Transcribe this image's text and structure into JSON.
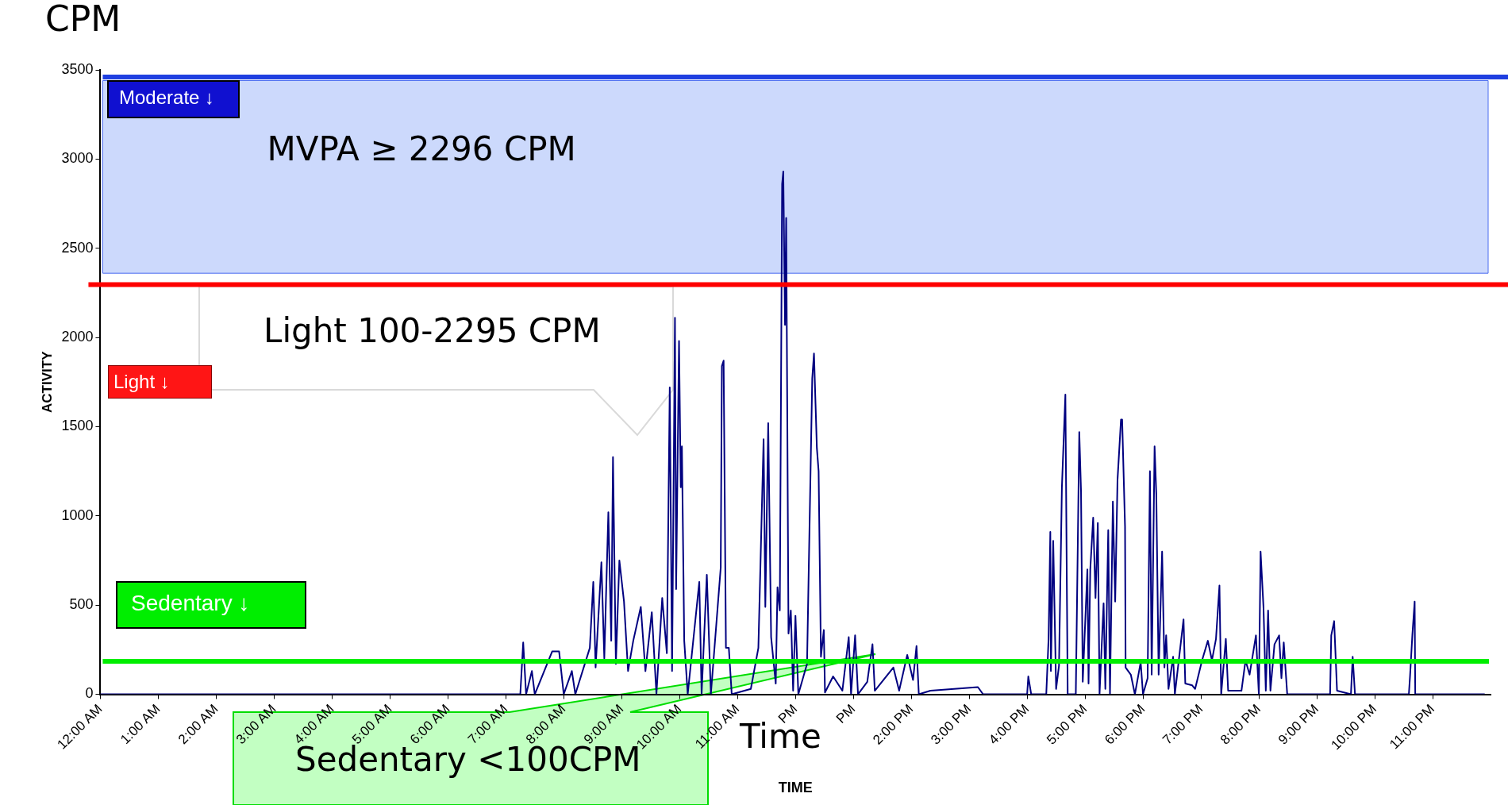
{
  "chart_data": {
    "type": "line",
    "title": "CPM",
    "xlabel": "TIME",
    "ylabel": "ACTIVITY",
    "annotations": [
      "Light 100-2295 CPM",
      "Sedentary <100CPM",
      "Time",
      "Light ↓",
      "Sedentary ↓"
    ],
    "xlim": [
      0,
      24
    ],
    "ylim": [
      0,
      3500
    ],
    "xticks": [
      {
        "value": 0,
        "label": "12:00 AM"
      },
      {
        "value": 1,
        "label": "1:00 AM"
      },
      {
        "value": 2,
        "label": "2:00 AM"
      },
      {
        "value": 3,
        "label": "3:00 AM"
      },
      {
        "value": 4,
        "label": "4:00 AM"
      },
      {
        "value": 5,
        "label": "5:00 AM"
      },
      {
        "value": 6,
        "label": "6:00 AM"
      },
      {
        "value": 7,
        "label": "7:00 AM"
      },
      {
        "value": 8,
        "label": "8:00 AM"
      },
      {
        "value": 9,
        "label": "9:00 AM"
      },
      {
        "value": 10,
        "label": "10:00 AM"
      },
      {
        "value": 11,
        "label": "11:00 AM"
      },
      {
        "value": 12,
        "label": "PM"
      },
      {
        "value": 13,
        "label": "PM"
      },
      {
        "value": 14,
        "label": "2:00 PM"
      },
      {
        "value": 15,
        "label": "3:00 PM"
      },
      {
        "value": 16,
        "label": "4:00 PM"
      },
      {
        "value": 17,
        "label": "5:00 PM"
      },
      {
        "value": 18,
        "label": "6:00 PM"
      },
      {
        "value": 19,
        "label": "7:00 PM"
      },
      {
        "value": 20,
        "label": "8:00 PM"
      },
      {
        "value": 21,
        "label": "9:00 PM"
      },
      {
        "value": 22,
        "label": "10:00 PM"
      },
      {
        "value": 23,
        "label": "11:00 PM"
      }
    ],
    "yticks": [
      0,
      500,
      1000,
      1500,
      2000,
      2500,
      3000,
      3500
    ],
    "grid": false,
    "legend": false,
    "marker": "none",
    "line_style": "solid",
    "bands": [
      {
        "axis": "y",
        "from": 2360,
        "to": 3440,
        "label": "MVPA ≥ 2296 CPM",
        "color": "#ccd9fc"
      }
    ],
    "ref_lines": [
      {
        "axis": "y",
        "value": 3460,
        "label": "Moderate ↓",
        "color": "#1f3fe0"
      },
      {
        "axis": "y",
        "value": 2296,
        "color": "#ff0000"
      },
      {
        "axis": "y",
        "value": 185,
        "color": "#00ee00"
      }
    ],
    "series": [
      {
        "color": "#000080",
        "x": [
          0,
          7.25,
          7.3,
          7.35,
          7.45,
          7.5,
          7.8,
          7.92,
          8.0,
          8.14,
          8.2,
          8.45,
          8.51,
          8.55,
          8.65,
          8.7,
          8.77,
          8.82,
          8.85,
          8.9,
          8.96,
          9.04,
          9.11,
          9.2,
          9.33,
          9.41,
          9.52,
          9.6,
          9.7,
          9.78,
          9.83,
          9.87,
          9.92,
          9.94,
          9.99,
          10.02,
          10.04,
          10.08,
          10.14,
          10.34,
          10.38,
          10.47,
          10.54,
          10.71,
          10.73,
          10.76,
          10.8,
          10.85,
          10.9,
          11.23,
          11.36,
          11.45,
          11.48,
          11.53,
          11.58,
          11.66,
          11.69,
          11.73,
          11.77,
          11.79,
          11.82,
          11.84,
          11.88,
          11.92,
          11.96,
          12.0,
          12.05,
          12.2,
          12.29,
          12.32,
          12.37,
          12.4,
          12.44,
          12.49,
          12.51,
          12.65,
          12.81,
          12.92,
          12.96,
          13.03,
          13.08,
          13.24,
          13.33,
          13.37,
          13.69,
          13.79,
          13.93,
          14.03,
          14.09,
          14.13,
          14.33,
          15.15,
          15.24,
          16.0,
          16.02,
          16.07,
          16.33,
          16.37,
          16.4,
          16.41,
          16.45,
          16.5,
          16.55,
          16.6,
          16.66,
          16.7,
          16.84,
          16.9,
          16.93,
          16.96,
          17.04,
          17.06,
          17.09,
          17.14,
          17.18,
          17.22,
          17.25,
          17.32,
          17.35,
          17.4,
          17.43,
          17.48,
          17.52,
          17.56,
          17.62,
          17.64,
          17.69,
          17.7,
          17.79,
          17.86,
          17.96,
          18.0,
          18.08,
          18.12,
          18.15,
          18.2,
          18.23,
          18.27,
          18.33,
          18.37,
          18.4,
          18.44,
          18.52,
          18.55,
          18.7,
          18.73,
          18.85,
          18.9,
          19.02,
          19.12,
          19.19,
          19.26,
          19.32,
          19.35,
          19.43,
          19.47,
          19.7,
          19.77,
          19.84,
          19.95,
          20.0,
          20.03,
          20.08,
          20.12,
          20.16,
          20.2,
          20.27,
          20.35,
          20.39,
          20.43,
          20.49,
          21.23,
          21.25,
          21.3,
          21.35,
          21.59,
          21.62,
          21.66,
          22.59,
          22.61,
          22.65,
          22.69,
          22.7,
          23.9
        ],
        "values": [
          0,
          0,
          290,
          0,
          130,
          0,
          240,
          240,
          0,
          130,
          0,
          260,
          630,
          150,
          740,
          200,
          1020,
          300,
          1330,
          170,
          750,
          520,
          130,
          300,
          490,
          130,
          460,
          0,
          540,
          230,
          1720,
          130,
          2110,
          590,
          1980,
          1160,
          1390,
          300,
          0,
          630,
          0,
          670,
          0,
          710,
          1840,
          1870,
          260,
          260,
          0,
          30,
          260,
          1430,
          490,
          1520,
          320,
          60,
          600,
          470,
          2860,
          2930,
          2070,
          2670,
          340,
          470,
          20,
          440,
          0,
          170,
          1770,
          1910,
          1380,
          1250,
          210,
          360,
          10,
          100,
          20,
          320,
          0,
          330,
          0,
          70,
          280,
          20,
          150,
          20,
          220,
          80,
          270,
          0,
          20,
          40,
          0,
          0,
          100,
          0,
          0,
          310,
          910,
          130,
          860,
          30,
          160,
          1160,
          1680,
          0,
          0,
          1470,
          1140,
          70,
          700,
          60,
          700,
          990,
          540,
          960,
          0,
          510,
          30,
          920,
          0,
          1080,
          520,
          1200,
          1540,
          1540,
          940,
          150,
          110,
          0,
          180,
          0,
          90,
          1250,
          110,
          1390,
          1120,
          110,
          800,
          150,
          330,
          30,
          210,
          0,
          420,
          60,
          50,
          30,
          190,
          300,
          190,
          310,
          610,
          0,
          310,
          20,
          20,
          190,
          110,
          330,
          0,
          800,
          490,
          20,
          470,
          20,
          280,
          330,
          90,
          290,
          0,
          0,
          330,
          410,
          20,
          0,
          210,
          0,
          0,
          100,
          330,
          520,
          0,
          0
        ]
      }
    ]
  }
}
